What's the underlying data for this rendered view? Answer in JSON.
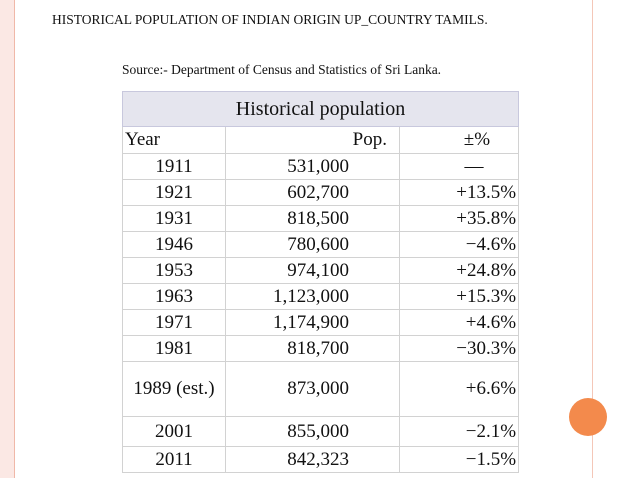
{
  "title": "HISTORICAL POPULATION OF INDIAN ORIGIN  UP_COUNTRY TAMILS.",
  "source": "Source:- Department of Census and Statistics of Sri Lanka.",
  "table": {
    "caption": "Historical population",
    "headers": [
      "Year",
      "Pop.",
      "±%"
    ],
    "rows": [
      {
        "year": "1911",
        "pop": "531,000",
        "change": "—"
      },
      {
        "year": "1921",
        "pop": "602,700",
        "change": "+13.5%"
      },
      {
        "year": "1931",
        "pop": "818,500",
        "change": "+35.8%"
      },
      {
        "year": "1946",
        "pop": "780,600",
        "change": "−4.6%"
      },
      {
        "year": "1953",
        "pop": "974,100",
        "change": "+24.8%"
      },
      {
        "year": "1963",
        "pop": "1,123,000",
        "change": "+15.3%"
      },
      {
        "year": "1971",
        "pop": "1,174,900",
        "change": "+4.6%"
      },
      {
        "year": "1981",
        "pop": "818,700",
        "change": "−30.3%"
      },
      {
        "year": "1989 (est.)",
        "pop": "873,000",
        "change": "+6.6%"
      },
      {
        "year": "2001",
        "pop": "855,000",
        "change": "−2.1%"
      },
      {
        "year": "2011",
        "pop": "842,323",
        "change": "−1.5%"
      }
    ]
  },
  "colors": {
    "caption_bg": "#e5e5ee",
    "left_border": "#fbe8e4",
    "accent_circle": "#f38a4c"
  }
}
